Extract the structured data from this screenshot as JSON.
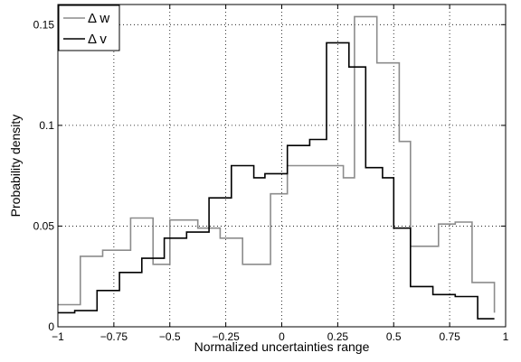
{
  "chart_data": {
    "type": "line",
    "title": "",
    "xlabel": "Normalized uncertainties range",
    "ylabel": "Probability density",
    "xlim": [
      -1,
      1
    ],
    "ylim": [
      0,
      0.16
    ],
    "xticks": [
      -1,
      -0.75,
      -0.5,
      -0.25,
      0,
      0.25,
      0.5,
      0.75,
      1
    ],
    "xtick_labels": [
      "−1",
      "−0.75",
      "−0.5",
      "−0.25",
      "0",
      "0.25",
      "0.5",
      "0.75",
      "1"
    ],
    "yticks": [
      0,
      0.05,
      0.1,
      0.15
    ],
    "ytick_labels": [
      "0",
      "0.05",
      "0.1",
      "0.15"
    ],
    "grid": true,
    "legend_position": "top-left",
    "series": [
      {
        "name": "Δ w",
        "color": "#8c8c8c",
        "style": "step",
        "edges": [
          -1,
          -0.9,
          -0.8,
          -0.675,
          -0.575,
          -0.5,
          -0.375,
          -0.275,
          -0.175,
          -0.05,
          0.025,
          0.15,
          0.275,
          0.325,
          0.425,
          0.525,
          0.575,
          0.7,
          0.775,
          0.85,
          0.95
        ],
        "values": [
          0.011,
          0.035,
          0.038,
          0.054,
          0.031,
          0.053,
          0.049,
          0.044,
          0.031,
          0.066,
          0.08,
          0.08,
          0.074,
          0.154,
          0.131,
          0.092,
          0.04,
          0.051,
          0.052,
          0.022,
          0.007
        ]
      },
      {
        "name": "Δ v",
        "color": "#000000",
        "style": "step",
        "edges": [
          -1,
          -0.925,
          -0.825,
          -0.725,
          -0.625,
          -0.525,
          -0.425,
          -0.325,
          -0.225,
          -0.125,
          -0.075,
          0.025,
          0.125,
          0.2,
          0.3,
          0.375,
          0.45,
          0.5,
          0.575,
          0.675,
          0.775,
          0.875,
          0.95
        ],
        "values": [
          0.007,
          0.008,
          0.018,
          0.027,
          0.034,
          0.044,
          0.047,
          0.064,
          0.08,
          0.074,
          0.076,
          0.09,
          0.093,
          0.141,
          0.129,
          0.079,
          0.074,
          0.049,
          0.02,
          0.016,
          0.015,
          0.004,
          0.004
        ]
      }
    ]
  }
}
